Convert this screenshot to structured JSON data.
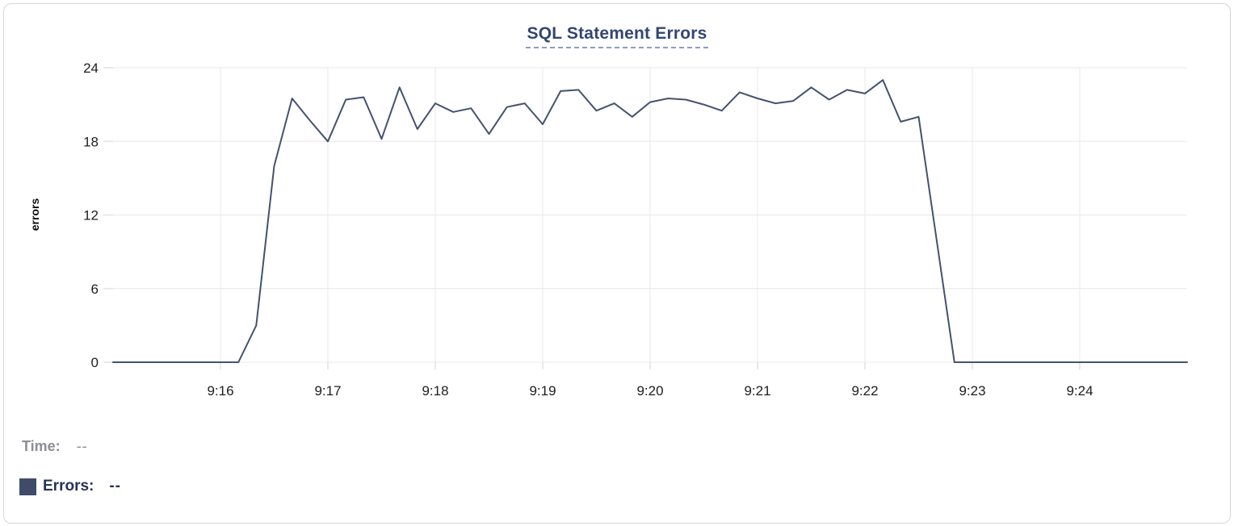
{
  "chart": {
    "title": "SQL Statement Errors",
    "y_axis_label": "errors"
  },
  "readout": {
    "time_label": "Time:",
    "time_value": "--",
    "errors_label": "Errors:",
    "errors_value": "--"
  },
  "colors": {
    "line": "#44526f",
    "swatch": "#3e4c6a",
    "title": "#334672",
    "title_underline": "#8e9cc2",
    "grid": "#e8e8e8",
    "tick_text": "#202020",
    "axis_label_text": "#0a0a0a",
    "time_text": "#8b8e95",
    "errors_text": "#25335a",
    "card_border": "#d6d6d6"
  },
  "chart_data": {
    "type": "line",
    "title": "SQL Statement Errors",
    "xlabel": "",
    "ylabel": "errors",
    "ylim": [
      0,
      24
    ],
    "y_ticks": [
      0,
      6,
      12,
      18,
      24
    ],
    "x_ticks": [
      "9:16",
      "9:17",
      "9:18",
      "9:19",
      "9:20",
      "9:21",
      "9:22",
      "9:23",
      "9:24"
    ],
    "x_range": [
      "9:15:00",
      "9:25:00"
    ],
    "grid": true,
    "legend_position": "bottom-left",
    "series": [
      {
        "name": "Errors",
        "times": [
          "9:15:00",
          "9:15:10",
          "9:15:20",
          "9:15:30",
          "9:15:40",
          "9:15:50",
          "9:16:00",
          "9:16:10",
          "9:16:20",
          "9:16:30",
          "9:16:40",
          "9:16:50",
          "9:17:00",
          "9:17:10",
          "9:17:20",
          "9:17:30",
          "9:17:40",
          "9:17:50",
          "9:18:00",
          "9:18:10",
          "9:18:20",
          "9:18:30",
          "9:18:40",
          "9:18:50",
          "9:19:00",
          "9:19:10",
          "9:19:20",
          "9:19:30",
          "9:19:40",
          "9:19:50",
          "9:20:00",
          "9:20:10",
          "9:20:20",
          "9:20:30",
          "9:20:40",
          "9:20:50",
          "9:21:00",
          "9:21:10",
          "9:21:20",
          "9:21:30",
          "9:21:40",
          "9:21:50",
          "9:22:00",
          "9:22:10",
          "9:22:20",
          "9:22:30",
          "9:22:40",
          "9:22:50",
          "9:23:00",
          "9:23:10",
          "9:23:20",
          "9:23:30",
          "9:23:40",
          "9:23:50",
          "9:24:00",
          "9:24:10",
          "9:24:20",
          "9:24:30",
          "9:24:40",
          "9:24:50",
          "9:25:00"
        ],
        "values": [
          0,
          0,
          0,
          0,
          0,
          0,
          0,
          0,
          3,
          16,
          21.5,
          19.7,
          18,
          21.4,
          21.6,
          18.2,
          22.4,
          19,
          21.1,
          20.4,
          20.7,
          18.6,
          20.8,
          21.1,
          19.4,
          22.1,
          22.2,
          20.5,
          21.1,
          20,
          21.2,
          21.5,
          21.4,
          21,
          20.5,
          22,
          21.5,
          21.1,
          21.3,
          22.4,
          21.4,
          22.2,
          21.9,
          23,
          19.6,
          20,
          10,
          0,
          0,
          0,
          0,
          0,
          0,
          0,
          0,
          0,
          0,
          0,
          0,
          0,
          0
        ]
      }
    ]
  }
}
